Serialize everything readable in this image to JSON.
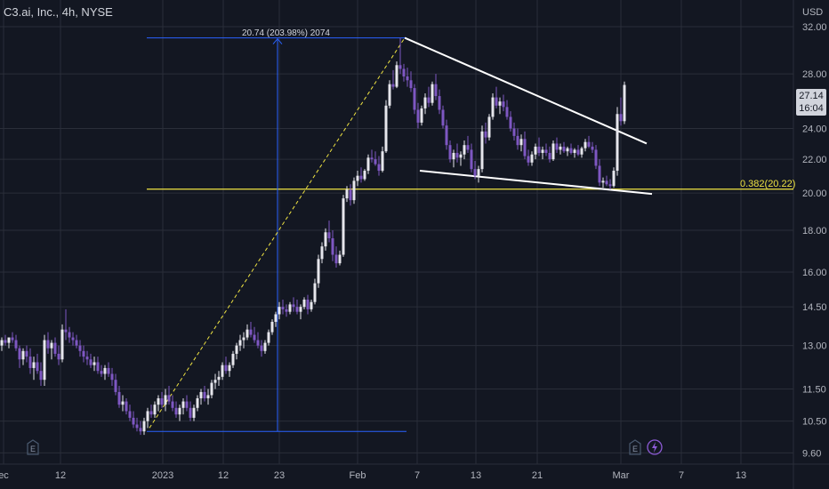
{
  "header": {
    "symbol_title": "C3.ai, Inc., 4h, NYSE",
    "currency": "USD"
  },
  "price_tag": {
    "price": "27.14",
    "countdown": "16:04"
  },
  "fib_level_label": "0.382(20.22)",
  "measure_label": "20.74 (203.98%) 2074",
  "colors": {
    "background": "#131722",
    "up_candle": "#e6e6ec",
    "down_candle": "#7e57c2",
    "fib_line": "#f0e442",
    "measure_line": "#2962ff",
    "trend_lines": "#ffffff",
    "grid": "#2a2e39"
  },
  "events": [
    {
      "icon": "earnings-icon",
      "label": "E"
    },
    {
      "icon": "earnings-icon",
      "label": "E"
    },
    {
      "icon": "lightning-icon",
      "label": "⚡"
    }
  ],
  "chart_data": {
    "type": "candlestick",
    "title": "C3.ai, Inc., 4h, NYSE",
    "y_scale": "log",
    "ylim": [
      9.3,
      34.5
    ],
    "y_ticks": [
      9.6,
      10.5,
      11.5,
      13,
      14.5,
      16,
      18,
      20,
      22,
      24,
      28,
      32
    ],
    "y_tick_labels": [
      "9.60",
      "10.50",
      "11.50",
      "13.00",
      "14.50",
      "16.00",
      "18.00",
      "20.00",
      "22.00",
      "24.00",
      "28.00",
      "32.00"
    ],
    "x_tick_labels": [
      "ec",
      "12",
      "2023",
      "12",
      "23",
      "Feb",
      "7",
      "13",
      "21",
      "Mar",
      "7",
      "13"
    ],
    "fib_level": {
      "ratio": "0.382",
      "price": 20.22
    },
    "measurement": {
      "from_price": 10.2,
      "to_price": 31.0,
      "change": "20.74 (203.98%) 2074"
    },
    "last_price": 27.14,
    "wedge_upper": [
      [
        455,
        31.0
      ],
      [
        727,
        23.0
      ]
    ],
    "wedge_lower": [
      [
        472,
        21.3
      ],
      [
        733,
        19.95
      ]
    ],
    "diagonal_projection": [
      [
        168,
        10.3
      ],
      [
        455,
        31.0
      ]
    ],
    "candles_x": [
      2,
      6,
      10,
      14,
      18,
      22,
      26,
      30,
      34,
      38,
      42,
      46,
      50,
      54,
      58,
      62,
      66,
      70,
      74,
      78,
      82,
      86,
      90,
      94,
      98,
      102,
      106,
      110,
      114,
      118,
      122,
      126,
      130,
      134,
      138,
      142,
      146,
      150,
      154,
      158,
      162,
      166,
      170,
      174,
      178,
      182,
      186,
      190,
      194,
      198,
      202,
      206,
      210,
      214,
      218,
      222,
      226,
      230,
      234,
      238,
      242,
      246,
      250,
      254,
      258,
      262,
      266,
      270,
      274,
      278,
      282,
      286,
      290,
      294,
      298,
      302,
      306,
      310,
      314,
      318,
      322,
      326,
      330,
      334,
      338,
      342,
      346,
      350,
      354,
      358,
      362,
      366,
      370,
      374,
      378,
      382,
      386,
      390,
      394,
      398,
      402,
      406,
      410,
      414,
      418,
      422,
      426,
      430,
      434,
      438,
      442,
      446,
      450,
      454,
      458,
      462,
      466,
      470,
      474,
      478,
      482,
      486,
      490,
      494,
      498,
      502,
      506,
      510,
      514,
      518,
      522,
      526,
      530,
      534,
      538,
      542,
      546,
      550,
      554,
      558,
      562,
      566,
      570,
      574,
      578,
      582,
      586,
      590,
      594,
      598,
      602,
      606,
      610,
      614,
      618,
      622,
      626,
      630,
      634,
      638,
      642,
      646,
      650,
      654,
      658,
      662,
      666,
      670,
      674,
      678,
      682,
      686,
      690,
      694,
      698,
      702,
      706,
      710,
      714,
      718,
      722,
      726,
      730,
      734,
      738
    ],
    "candles_ohlc": [
      [
        13.0,
        13.3,
        12.8,
        13.2
      ],
      [
        13.2,
        13.4,
        13.0,
        13.1
      ],
      [
        13.1,
        13.3,
        12.9,
        13.3
      ],
      [
        13.3,
        13.5,
        13.1,
        13.2
      ],
      [
        13.2,
        13.4,
        12.8,
        12.9
      ],
      [
        12.9,
        13.0,
        12.2,
        12.5
      ],
      [
        12.5,
        12.9,
        12.3,
        12.8
      ],
      [
        12.8,
        13.0,
        12.4,
        12.6
      ],
      [
        12.6,
        12.9,
        12.0,
        12.2
      ],
      [
        12.2,
        12.6,
        11.8,
        12.4
      ],
      [
        12.4,
        12.7,
        12.0,
        12.1
      ],
      [
        12.1,
        12.4,
        11.6,
        11.8
      ],
      [
        11.8,
        13.4,
        11.6,
        13.2
      ],
      [
        13.2,
        13.5,
        12.7,
        12.9
      ],
      [
        12.9,
        13.2,
        12.5,
        13.1
      ],
      [
        13.1,
        13.3,
        12.6,
        12.7
      ],
      [
        12.7,
        13.0,
        12.3,
        12.5
      ],
      [
        12.5,
        13.8,
        12.4,
        13.6
      ],
      [
        13.6,
        14.4,
        13.2,
        13.5
      ],
      [
        13.5,
        13.7,
        13.1,
        13.3
      ],
      [
        13.3,
        13.5,
        13.0,
        13.2
      ],
      [
        13.2,
        13.4,
        12.9,
        13.0
      ],
      [
        13.0,
        13.2,
        12.6,
        12.8
      ],
      [
        12.8,
        13.0,
        12.4,
        12.6
      ],
      [
        12.6,
        12.8,
        12.3,
        12.5
      ],
      [
        12.5,
        12.7,
        12.2,
        12.3
      ],
      [
        12.3,
        12.6,
        12.1,
        12.4
      ],
      [
        12.4,
        12.6,
        12.0,
        12.1
      ],
      [
        12.1,
        12.3,
        11.9,
        12.0
      ],
      [
        12.0,
        12.3,
        11.8,
        12.2
      ],
      [
        12.2,
        12.4,
        11.9,
        12.0
      ],
      [
        12.0,
        12.2,
        11.6,
        11.8
      ],
      [
        11.8,
        12.0,
        11.3,
        11.4
      ],
      [
        11.4,
        11.6,
        10.9,
        11.0
      ],
      [
        11.0,
        11.3,
        10.8,
        11.1
      ],
      [
        11.1,
        11.2,
        10.7,
        10.8
      ],
      [
        10.8,
        11.0,
        10.5,
        10.6
      ],
      [
        10.6,
        10.8,
        10.3,
        10.4
      ],
      [
        10.4,
        10.6,
        10.2,
        10.3
      ],
      [
        10.3,
        10.5,
        10.1,
        10.2
      ],
      [
        10.2,
        10.6,
        10.1,
        10.5
      ],
      [
        10.5,
        10.9,
        10.3,
        10.8
      ],
      [
        10.8,
        11.0,
        10.6,
        10.7
      ],
      [
        10.7,
        11.1,
        10.6,
        11.0
      ],
      [
        11.0,
        11.3,
        10.8,
        11.2
      ],
      [
        11.2,
        11.4,
        10.9,
        11.0
      ],
      [
        11.0,
        11.5,
        10.8,
        11.3
      ],
      [
        11.3,
        11.6,
        11.0,
        11.1
      ],
      [
        11.1,
        11.3,
        10.8,
        10.9
      ],
      [
        10.9,
        11.1,
        10.6,
        10.7
      ],
      [
        10.7,
        11.0,
        10.5,
        10.9
      ],
      [
        10.9,
        11.2,
        10.7,
        11.1
      ],
      [
        11.1,
        11.3,
        10.8,
        10.9
      ],
      [
        10.9,
        11.1,
        10.5,
        10.6
      ],
      [
        10.6,
        11.0,
        10.5,
        10.9
      ],
      [
        10.9,
        11.3,
        10.8,
        11.2
      ],
      [
        11.2,
        11.5,
        11.0,
        11.4
      ],
      [
        11.4,
        11.6,
        11.1,
        11.2
      ],
      [
        11.2,
        11.5,
        11.0,
        11.3
      ],
      [
        11.3,
        11.8,
        11.2,
        11.7
      ],
      [
        11.7,
        12.0,
        11.5,
        11.8
      ],
      [
        11.8,
        12.1,
        11.6,
        11.9
      ],
      [
        11.9,
        12.4,
        11.8,
        12.3
      ],
      [
        12.3,
        12.6,
        12.0,
        12.1
      ],
      [
        12.1,
        12.4,
        11.9,
        12.3
      ],
      [
        12.3,
        12.8,
        12.2,
        12.7
      ],
      [
        12.7,
        13.1,
        12.5,
        13.0
      ],
      [
        13.0,
        13.4,
        12.8,
        13.2
      ],
      [
        13.2,
        13.5,
        12.9,
        13.3
      ],
      [
        13.3,
        13.8,
        13.2,
        13.6
      ],
      [
        13.6,
        13.9,
        13.3,
        13.4
      ],
      [
        13.4,
        13.7,
        13.1,
        13.2
      ],
      [
        13.2,
        13.5,
        12.9,
        13.0
      ],
      [
        13.0,
        13.2,
        12.6,
        12.8
      ],
      [
        12.8,
        13.2,
        12.7,
        13.1
      ],
      [
        13.1,
        13.6,
        13.0,
        13.5
      ],
      [
        13.5,
        14.0,
        13.4,
        13.9
      ],
      [
        13.9,
        14.3,
        13.7,
        14.2
      ],
      [
        14.2,
        14.7,
        14.0,
        14.5
      ],
      [
        14.5,
        14.8,
        14.2,
        14.4
      ],
      [
        14.4,
        14.6,
        14.1,
        14.3
      ],
      [
        14.3,
        14.7,
        14.2,
        14.6
      ],
      [
        14.6,
        14.9,
        14.3,
        14.5
      ],
      [
        14.5,
        14.8,
        14.2,
        14.3
      ],
      [
        14.3,
        14.6,
        14.0,
        14.5
      ],
      [
        14.5,
        14.9,
        14.4,
        14.8
      ],
      [
        14.8,
        15.0,
        14.2,
        14.4
      ],
      [
        14.4,
        14.8,
        14.3,
        14.7
      ],
      [
        14.7,
        15.7,
        14.6,
        15.5
      ],
      [
        15.5,
        16.8,
        15.3,
        16.6
      ],
      [
        16.6,
        17.4,
        16.4,
        17.2
      ],
      [
        17.2,
        18.1,
        17.0,
        17.9
      ],
      [
        17.9,
        18.5,
        17.4,
        17.6
      ],
      [
        17.6,
        18.0,
        16.5,
        16.8
      ],
      [
        16.8,
        17.2,
        16.2,
        16.4
      ],
      [
        16.4,
        17.0,
        16.3,
        16.8
      ],
      [
        16.8,
        19.9,
        16.7,
        19.7
      ],
      [
        19.7,
        20.4,
        19.5,
        20.2
      ],
      [
        20.2,
        20.5,
        19.3,
        19.6
      ],
      [
        19.6,
        20.9,
        19.4,
        20.7
      ],
      [
        20.7,
        21.3,
        20.4,
        21.0
      ],
      [
        21.0,
        21.5,
        20.6,
        20.8
      ],
      [
        20.8,
        21.4,
        20.7,
        21.3
      ],
      [
        21.3,
        22.3,
        21.1,
        22.1
      ],
      [
        22.1,
        22.6,
        21.8,
        22.0
      ],
      [
        22.0,
        22.5,
        21.6,
        21.7
      ],
      [
        21.7,
        22.2,
        21.0,
        21.3
      ],
      [
        21.3,
        22.8,
        21.2,
        22.5
      ],
      [
        22.5,
        26.0,
        22.4,
        25.6
      ],
      [
        25.6,
        27.5,
        25.4,
        27.2
      ],
      [
        27.2,
        28.3,
        26.8,
        27.0
      ],
      [
        27.0,
        29.0,
        26.9,
        28.7
      ],
      [
        28.7,
        31.0,
        28.0,
        28.4
      ],
      [
        28.4,
        28.8,
        27.4,
        27.8
      ],
      [
        27.8,
        28.5,
        27.0,
        27.5
      ],
      [
        27.5,
        28.2,
        26.6,
        26.9
      ],
      [
        26.9,
        27.2,
        25.0,
        25.3
      ],
      [
        25.3,
        25.8,
        24.0,
        24.4
      ],
      [
        24.4,
        25.6,
        24.2,
        25.4
      ],
      [
        25.4,
        26.5,
        25.0,
        26.2
      ],
      [
        26.2,
        27.0,
        25.5,
        25.8
      ],
      [
        25.8,
        27.4,
        25.6,
        27.2
      ],
      [
        27.2,
        28.0,
        26.0,
        26.3
      ],
      [
        26.3,
        26.8,
        25.0,
        25.3
      ],
      [
        25.3,
        25.6,
        24.0,
        24.2
      ],
      [
        24.2,
        24.6,
        22.6,
        22.9
      ],
      [
        22.9,
        23.2,
        21.8,
        22.0
      ],
      [
        22.0,
        22.6,
        21.5,
        22.4
      ],
      [
        22.4,
        23.0,
        21.8,
        22.1
      ],
      [
        22.1,
        22.5,
        21.6,
        22.3
      ],
      [
        22.3,
        23.2,
        22.0,
        22.9
      ],
      [
        22.9,
        23.5,
        22.4,
        22.6
      ],
      [
        22.6,
        23.0,
        21.2,
        21.4
      ],
      [
        21.4,
        21.9,
        20.8,
        21.0
      ],
      [
        21.0,
        21.6,
        20.6,
        21.4
      ],
      [
        21.4,
        24.2,
        21.2,
        23.8
      ],
      [
        23.8,
        24.4,
        23.0,
        23.4
      ],
      [
        23.4,
        25.0,
        23.2,
        24.8
      ],
      [
        24.8,
        26.5,
        24.6,
        26.2
      ],
      [
        26.2,
        27.0,
        25.4,
        25.6
      ],
      [
        25.6,
        26.2,
        25.0,
        25.9
      ],
      [
        25.9,
        26.4,
        25.2,
        25.5
      ],
      [
        25.5,
        26.0,
        24.6,
        24.8
      ],
      [
        24.8,
        25.2,
        23.8,
        24.0
      ],
      [
        24.0,
        24.4,
        23.2,
        23.5
      ],
      [
        23.5,
        24.0,
        22.6,
        22.9
      ],
      [
        22.9,
        23.6,
        22.5,
        23.3
      ],
      [
        23.3,
        23.8,
        22.0,
        22.2
      ],
      [
        22.2,
        22.6,
        21.6,
        21.8
      ],
      [
        21.8,
        22.5,
        21.6,
        22.3
      ],
      [
        22.3,
        23.0,
        22.0,
        22.8
      ],
      [
        22.8,
        23.4,
        22.2,
        22.4
      ],
      [
        22.4,
        22.8,
        22.0,
        22.6
      ],
      [
        22.6,
        23.0,
        22.2,
        22.4
      ],
      [
        22.4,
        22.8,
        21.8,
        22.0
      ],
      [
        22.0,
        23.2,
        21.9,
        23.0
      ],
      [
        23.0,
        23.4,
        22.4,
        22.6
      ],
      [
        22.6,
        23.0,
        22.3,
        22.8
      ],
      [
        22.8,
        23.1,
        22.4,
        22.5
      ],
      [
        22.5,
        22.8,
        22.2,
        22.7
      ],
      [
        22.7,
        23.0,
        22.3,
        22.4
      ],
      [
        22.4,
        22.7,
        22.1,
        22.6
      ],
      [
        22.6,
        22.9,
        22.2,
        22.3
      ],
      [
        22.3,
        22.8,
        22.1,
        22.7
      ],
      [
        22.7,
        23.3,
        22.5,
        23.1
      ],
      [
        23.1,
        23.5,
        22.7,
        22.8
      ],
      [
        22.8,
        23.1,
        22.4,
        22.6
      ],
      [
        22.6,
        22.9,
        21.4,
        21.6
      ],
      [
        21.6,
        22.0,
        20.4,
        20.6
      ],
      [
        20.6,
        20.9,
        20.3,
        20.7
      ],
      [
        20.7,
        21.0,
        20.4,
        20.5
      ],
      [
        20.5,
        20.8,
        20.2,
        20.4
      ],
      [
        20.4,
        21.5,
        20.3,
        21.3
      ],
      [
        21.3,
        25.5,
        21.0,
        25.0
      ],
      [
        25.0,
        26.2,
        24.2,
        24.5
      ],
      [
        24.5,
        27.4,
        24.3,
        27.14
      ]
    ]
  }
}
